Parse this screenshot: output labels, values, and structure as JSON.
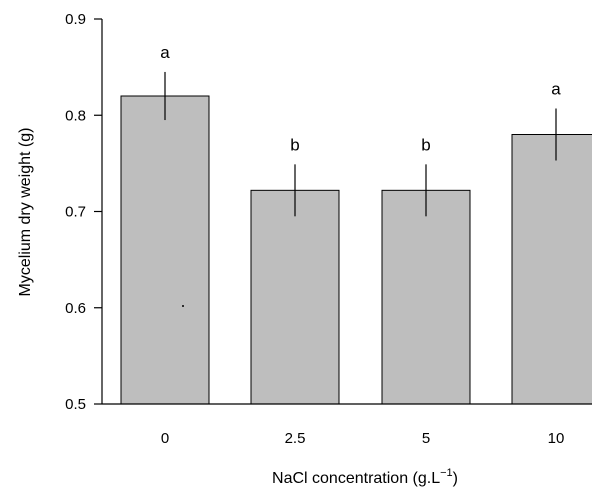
{
  "chart_data": {
    "type": "bar",
    "categories": [
      "0",
      "2.5",
      "5",
      "10"
    ],
    "values": [
      0.82,
      0.722,
      0.722,
      0.78
    ],
    "errors": [
      0.025,
      0.027,
      0.027,
      0.027
    ],
    "significance": [
      "a",
      "b",
      "b",
      "a"
    ],
    "xlabel_main": "NaCl concentration (g.L",
    "xlabel_sup": "−1",
    "xlabel_end": ")",
    "ylabel": "Mycelium dry weight (g)",
    "ylim": [
      0.5,
      0.9
    ],
    "yticks": [
      "0.5",
      "0.6",
      "0.7",
      "0.8",
      "0.9"
    ],
    "bar_color": "#bebebe",
    "grid": false
  }
}
